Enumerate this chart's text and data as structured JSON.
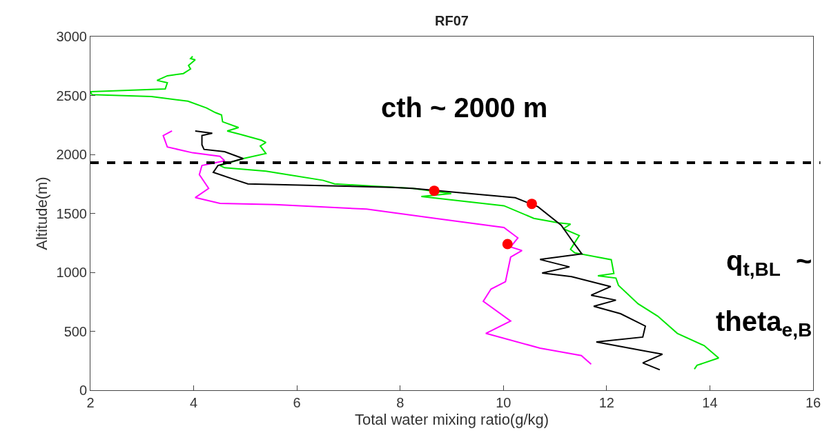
{
  "chart_data": {
    "type": "line",
    "title": "RF07",
    "xlabel": "Total water mixing ratio(g/kg)",
    "ylabel": "Altitude(m)",
    "xlim": [
      2,
      16
    ],
    "xticks": [
      2,
      4,
      6,
      8,
      10,
      12,
      14,
      16
    ],
    "ylim": [
      0,
      3000
    ],
    "yticks": [
      0,
      500,
      1000,
      1500,
      2000,
      2500,
      3000
    ],
    "line_style": "solid",
    "marker": "none",
    "series": [
      {
        "color": "#00e600",
        "x": [
          3.98,
          3.94,
          4.03,
          3.9,
          3.94,
          3.8,
          3.49,
          3.29,
          3.49,
          3.45,
          2.0,
          2.03,
          3.18,
          3.89,
          4.25,
          4.42,
          4.54,
          4.56,
          4.87,
          4.65,
          4.91,
          5.31,
          5.4,
          5.29,
          5.4,
          4.96,
          4.51,
          4.6,
          5.4,
          6.51,
          6.73,
          8.24,
          8.99,
          8.41,
          10.01,
          10.59,
          11.07,
          11.3,
          11.16,
          11.47,
          11.3,
          11.38,
          12.09,
          12.14,
          11.83,
          12.18,
          12.23,
          12.61,
          12.99,
          13.37,
          13.89,
          14.17,
          13.75,
          13.7
        ],
        "values": [
          2832,
          2813,
          2803,
          2754,
          2725,
          2686,
          2667,
          2628,
          2608,
          2556,
          2532,
          2507,
          2491,
          2452,
          2394,
          2355,
          2335,
          2277,
          2228,
          2199,
          2170,
          2121,
          2101,
          2072,
          2008,
          1965,
          1906,
          1887,
          1858,
          1780,
          1750,
          1712,
          1668,
          1643,
          1565,
          1458,
          1419,
          1409,
          1370,
          1312,
          1195,
          1166,
          1107,
          990,
          971,
          951,
          889,
          733,
          628,
          482,
          378,
          273,
          211,
          179
        ]
      },
      {
        "color": "#000000",
        "x": [
          4.03,
          4.36,
          4.16,
          4.16,
          4.2,
          4.6,
          4.96,
          4.47,
          4.38,
          4.78,
          5.05,
          7.84,
          8.24,
          10.23,
          10.67,
          11.12,
          11.34,
          11.52,
          10.71,
          11.28,
          10.75,
          11.32,
          12.08,
          11.7,
          12.18,
          11.75,
          12.27,
          12.75,
          12.7,
          11.8,
          13.08,
          12.7,
          13.03
        ],
        "values": [
          2199,
          2180,
          2160,
          2082,
          2043,
          2023,
          1965,
          1906,
          1848,
          1789,
          1750,
          1721,
          1712,
          1633,
          1556,
          1399,
          1263,
          1156,
          1109,
          1046,
          994,
          963,
          879,
          806,
          764,
          712,
          649,
          544,
          451,
          409,
          305,
          232,
          173
        ]
      },
      {
        "color": "#ff00ff",
        "x": [
          3.58,
          3.41,
          3.49,
          3.98,
          4.51,
          4.6,
          4.16,
          4.11,
          4.29,
          4.03,
          4.51,
          5.58,
          7.35,
          8.68,
          10.01,
          10.28,
          10.14,
          10.36,
          10.14,
          10.04,
          9.76,
          9.61,
          10.14,
          9.66,
          10.71,
          11.51,
          11.7
        ],
        "values": [
          2199,
          2160,
          2063,
          2014,
          1984,
          1946,
          1906,
          1829,
          1712,
          1634,
          1585,
          1575,
          1536,
          1458,
          1380,
          1292,
          1215,
          1185,
          1129,
          920,
          858,
          754,
          587,
          482,
          357,
          294,
          221
        ]
      },
      {
        "type": "scatter",
        "marker": "circle",
        "color": "#ff0000",
        "x": [
          8.66,
          10.55,
          10.08
        ],
        "values": [
          1692,
          1581,
          1240
        ]
      }
    ],
    "ref_lines": [
      {
        "axis": "y",
        "value": 1930,
        "color": "#000000",
        "line_style": "dashed"
      }
    ],
    "annotations": [
      "cth ~ 2000 m",
      "q$_{t,BL}$  ~",
      "theta$_{e,B}$"
    ]
  }
}
